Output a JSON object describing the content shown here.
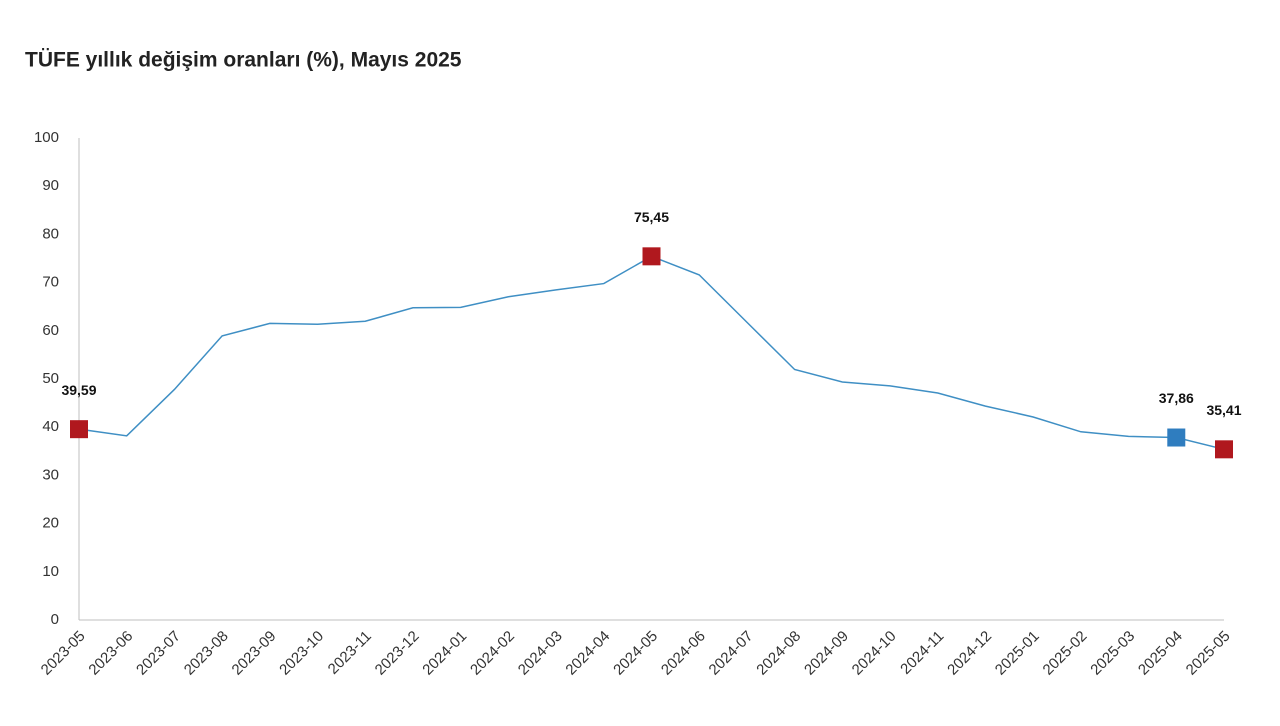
{
  "chart_data": {
    "type": "line",
    "title": "TÜFE yıllık değişim oranları (%), Mayıs 2025",
    "categories": [
      "2023-05",
      "2023-06",
      "2023-07",
      "2023-08",
      "2023-09",
      "2023-10",
      "2023-11",
      "2023-12",
      "2024-01",
      "2024-02",
      "2024-03",
      "2024-04",
      "2024-05",
      "2024-06",
      "2024-07",
      "2024-08",
      "2024-09",
      "2024-10",
      "2024-11",
      "2024-12",
      "2025-01",
      "2025-02",
      "2025-03",
      "2025-04",
      "2025-05"
    ],
    "values": [
      39.59,
      38.21,
      47.83,
      58.94,
      61.53,
      61.36,
      61.98,
      64.77,
      64.86,
      67.07,
      68.5,
      69.8,
      75.45,
      71.6,
      61.78,
      51.97,
      49.38,
      48.58,
      47.09,
      44.38,
      42.12,
      39.05,
      38.1,
      37.86,
      35.41
    ],
    "value_labels": [
      "39,59",
      null,
      null,
      null,
      null,
      null,
      null,
      null,
      null,
      null,
      null,
      null,
      "75,45",
      null,
      null,
      null,
      null,
      null,
      null,
      null,
      null,
      null,
      null,
      "37,86",
      "35,41"
    ],
    "marker_colors": [
      "#b0181e",
      null,
      null,
      null,
      null,
      null,
      null,
      null,
      null,
      null,
      null,
      null,
      "#b0181e",
      null,
      null,
      null,
      null,
      null,
      null,
      null,
      null,
      null,
      null,
      "#2f7dbf",
      "#b0181e"
    ],
    "color": "#3f8fc4",
    "ylim": [
      0,
      100
    ],
    "yticks": [
      0,
      10,
      20,
      30,
      40,
      50,
      60,
      70,
      80,
      90,
      100
    ],
    "grid": false
  }
}
